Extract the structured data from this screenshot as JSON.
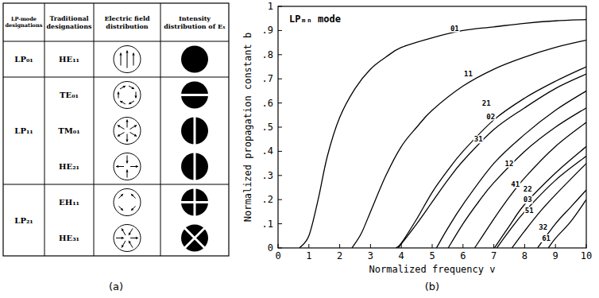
{
  "figure_a": {
    "label": "(a)",
    "header": [
      "LP-mode designations",
      "Traditional designations",
      "Electric field distribution",
      "Intensity distribution of Eₓ"
    ],
    "groups": [
      {
        "lp": "LP₀₁",
        "modes": [
          "HE₁₁"
        ]
      },
      {
        "lp": "LP₁₁",
        "modes": [
          "TE₀₁",
          "TM₀₁",
          "HE₂₁"
        ]
      },
      {
        "lp": "LP₂₁",
        "modes": [
          "EH₁₁",
          "HE₃₁"
        ]
      }
    ]
  },
  "chart_data": {
    "type": "line",
    "panel_label": "(b)",
    "title": "LPₘₙ mode",
    "x_label": "Normalized frequency v",
    "y_label": "Normalized propagation constant b",
    "xlim": [
      0,
      10
    ],
    "ylim": [
      0,
      1
    ],
    "xticks": [
      0,
      1,
      2,
      3,
      4,
      5,
      6,
      7,
      8,
      9,
      10
    ],
    "yticks": [
      0,
      {
        "value": 0.1,
        "label": ".1"
      },
      {
        "value": 0.2,
        "label": ".2"
      },
      {
        "value": 0.3,
        "label": ".3"
      },
      {
        "value": 0.4,
        "label": ".4"
      },
      {
        "value": 0.5,
        "label": ".5"
      },
      {
        "value": 0.6,
        "label": ".6"
      },
      {
        "value": 0.7,
        "label": ".7"
      },
      {
        "value": 0.8,
        "label": ".8"
      },
      {
        "value": 0.9,
        "label": ".9"
      },
      1
    ],
    "grid": false,
    "color": "#000000",
    "series": [
      {
        "name": "01",
        "x": [
          0.7,
          1,
          1.3,
          1.6,
          2,
          2.5,
          3,
          3.5,
          4,
          5,
          6,
          7,
          8,
          9,
          10
        ],
        "values": [
          0,
          0.05,
          0.2,
          0.38,
          0.54,
          0.66,
          0.74,
          0.79,
          0.83,
          0.87,
          0.9,
          0.915,
          0.93,
          0.94,
          0.945
        ]
      },
      {
        "name": "11",
        "x": [
          2.4,
          2.7,
          3,
          3.5,
          4,
          4.5,
          5,
          6,
          7,
          8,
          9,
          10
        ],
        "values": [
          0,
          0.06,
          0.15,
          0.3,
          0.42,
          0.5,
          0.57,
          0.67,
          0.74,
          0.79,
          0.83,
          0.86
        ]
      },
      {
        "name": "21",
        "x": [
          3.83,
          4,
          4.5,
          5,
          5.5,
          6,
          7,
          8,
          9,
          10
        ],
        "values": [
          0,
          0.02,
          0.12,
          0.23,
          0.32,
          0.4,
          0.53,
          0.62,
          0.69,
          0.75
        ]
      },
      {
        "name": "02",
        "x": [
          3.9,
          4.5,
          5,
          5.5,
          6,
          7,
          8,
          9,
          10
        ],
        "values": [
          0,
          0.1,
          0.19,
          0.28,
          0.36,
          0.49,
          0.58,
          0.66,
          0.72
        ]
      },
      {
        "name": "31",
        "x": [
          5.14,
          5.5,
          6,
          7,
          8,
          9,
          10
        ],
        "values": [
          0,
          0.08,
          0.18,
          0.35,
          0.47,
          0.57,
          0.65
        ]
      },
      {
        "name": "12",
        "x": [
          5.52,
          6,
          6.5,
          7,
          8,
          9,
          10
        ],
        "values": [
          0,
          0.1,
          0.19,
          0.27,
          0.4,
          0.5,
          0.58
        ]
      },
      {
        "name": "41",
        "x": [
          6.38,
          7,
          7.5,
          8,
          9,
          10
        ],
        "values": [
          0,
          0.12,
          0.21,
          0.29,
          0.42,
          0.52
        ]
      },
      {
        "name": "22",
        "x": [
          7.02,
          7.5,
          8,
          9,
          10
        ],
        "values": [
          0,
          0.09,
          0.18,
          0.31,
          0.42
        ]
      },
      {
        "name": "03",
        "x": [
          7.1,
          7.5,
          8,
          9,
          10
        ],
        "values": [
          0,
          0.07,
          0.15,
          0.28,
          0.38
        ]
      },
      {
        "name": "51",
        "x": [
          7.59,
          8,
          8.5,
          9,
          10
        ],
        "values": [
          0,
          0.07,
          0.15,
          0.22,
          0.35
        ]
      },
      {
        "name": "32",
        "x": [
          8.42,
          9,
          9.5,
          10
        ],
        "values": [
          0,
          0.1,
          0.17,
          0.24
        ]
      },
      {
        "name": "61",
        "x": [
          8.77,
          9,
          9.5,
          10
        ],
        "values": [
          0,
          0.04,
          0.11,
          0.2
        ]
      }
    ]
  }
}
